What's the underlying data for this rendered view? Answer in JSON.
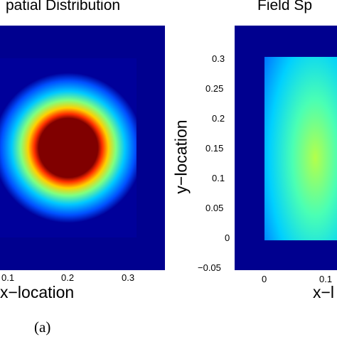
{
  "chart_data": [
    {
      "type": "heatmap",
      "title": "patial Distribution",
      "xlabel": "x−location",
      "ylabel": "",
      "xlim": [
        0.05,
        0.38
      ],
      "ylim": [
        -0.05,
        0.33
      ],
      "x_ticks": [
        "0.1",
        "0.2",
        "0.3"
      ],
      "y_ticks": [],
      "colormap": "jet",
      "field": {
        "shape": "circular",
        "center": [
          0.15,
          0.15
        ],
        "saturated_radius": 0.065,
        "falloff_radius": 0.165,
        "region_x": [
          0.0,
          0.3
        ],
        "region_y": [
          0.0,
          0.3
        ]
      },
      "panel_label": "(a)"
    },
    {
      "type": "heatmap",
      "title": "Field Sp",
      "xlabel": "x−l",
      "ylabel": "y−location",
      "xlim": [
        -0.05,
        0.15
      ],
      "ylim": [
        -0.05,
        0.33
      ],
      "x_ticks": [
        "0",
        "0.1"
      ],
      "y_ticks": [
        "0.3",
        "0.25",
        "0.2",
        "0.15",
        "0.1",
        "0.05",
        "0",
        "−0.05"
      ],
      "colormap": "jet",
      "field": {
        "shape": "smooth-gradient",
        "region_x": [
          0.0,
          0.3
        ],
        "region_y": [
          0.0,
          0.3
        ]
      }
    }
  ],
  "colors": {
    "background_navy": "#00008f",
    "saturated_red": "#800000"
  }
}
